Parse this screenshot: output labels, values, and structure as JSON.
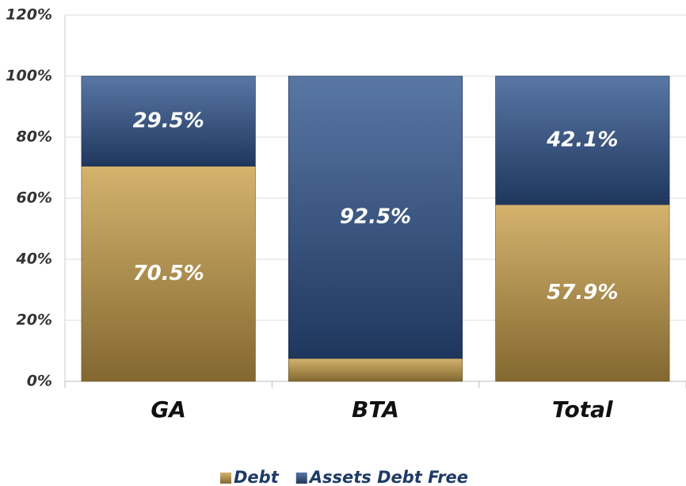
{
  "chart_data": {
    "type": "stacked_bar",
    "categories": [
      "GA",
      "BTA",
      "Total"
    ],
    "series": [
      {
        "name": "Debt",
        "color": "#c9a04a",
        "values": [
          70.5,
          7.5,
          57.9
        ],
        "value_labels": [
          "70.5%",
          null,
          "57.9%"
        ]
      },
      {
        "name": "Assets Debt Free",
        "color": "#30558f",
        "values": [
          29.5,
          92.5,
          42.1
        ],
        "value_labels": [
          "29.5%",
          "92.5%",
          "42.1%"
        ]
      }
    ],
    "ylim": [
      0,
      120
    ],
    "yticks": [
      {
        "value": 0,
        "label": "0%"
      },
      {
        "value": 20,
        "label": "20%"
      },
      {
        "value": 40,
        "label": "40%"
      },
      {
        "value": 60,
        "label": "60%"
      },
      {
        "value": 80,
        "label": "80%"
      },
      {
        "value": 100,
        "label": "100%"
      },
      {
        "value": 120,
        "label": "120%"
      }
    ],
    "grid": true,
    "legend": "bottom"
  }
}
